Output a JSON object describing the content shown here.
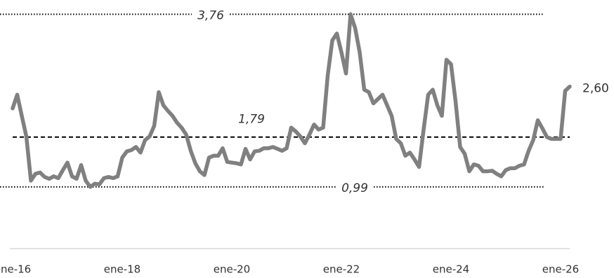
{
  "chart_data": {
    "type": "line",
    "categories": [
      "ene-16",
      null,
      null,
      null,
      null,
      null,
      null,
      null,
      null,
      null,
      null,
      null,
      null,
      null,
      null,
      null,
      null,
      null,
      null,
      null,
      null,
      null,
      null,
      null,
      "ene-18",
      null,
      null,
      null,
      null,
      null,
      null,
      null,
      null,
      null,
      null,
      null,
      null,
      null,
      null,
      null,
      null,
      null,
      null,
      null,
      null,
      null,
      null,
      null,
      "ene-20",
      null,
      null,
      null,
      null,
      null,
      null,
      null,
      null,
      null,
      null,
      null,
      null,
      null,
      null,
      null,
      null,
      null,
      null,
      null,
      null,
      null,
      null,
      null,
      "ene-22",
      null,
      null,
      null,
      null,
      null,
      null,
      null,
      null,
      null,
      null,
      null,
      null,
      null,
      null,
      null,
      null,
      null,
      null,
      null,
      null,
      null,
      null,
      null,
      "ene-24",
      null,
      null,
      null,
      null,
      null,
      null,
      null,
      null,
      null,
      null,
      null,
      null,
      null,
      null,
      null,
      null,
      null,
      null,
      null,
      null,
      null,
      null,
      null,
      "ene-26",
      null,
      null
    ],
    "values": [
      2.25,
      2.47,
      2.13,
      1.8,
      1.09,
      1.2,
      1.22,
      1.15,
      1.12,
      1.16,
      1.13,
      1.26,
      1.38,
      1.16,
      1.12,
      1.34,
      1.09,
      0.99,
      1.04,
      1.03,
      1.13,
      1.15,
      1.13,
      1.16,
      1.46,
      1.56,
      1.58,
      1.63,
      1.54,
      1.74,
      1.8,
      1.97,
      2.51,
      2.3,
      2.21,
      2.13,
      2.02,
      1.94,
      1.83,
      1.57,
      1.37,
      1.24,
      1.18,
      1.46,
      1.49,
      1.49,
      1.61,
      1.39,
      1.38,
      1.37,
      1.35,
      1.6,
      1.43,
      1.56,
      1.57,
      1.61,
      1.61,
      1.63,
      1.6,
      1.57,
      1.61,
      1.94,
      1.88,
      1.8,
      1.69,
      1.83,
      1.99,
      1.91,
      1.94,
      2.78,
      3.34,
      3.45,
      3.15,
      2.81,
      3.76,
      3.54,
      3.15,
      2.55,
      2.51,
      2.33,
      2.4,
      2.47,
      2.3,
      2.13,
      1.76,
      1.69,
      1.49,
      1.54,
      1.43,
      1.31,
      1.91,
      2.47,
      2.55,
      2.3,
      2.13,
      3.03,
      2.96,
      2.36,
      1.63,
      1.52,
      1.24,
      1.35,
      1.33,
      1.24,
      1.24,
      1.25,
      1.2,
      1.16,
      1.26,
      1.29,
      1.29,
      1.33,
      1.35,
      1.57,
      1.74,
      2.06,
      1.93,
      1.79,
      1.76,
      1.76,
      1.76,
      2.53,
      2.6
    ],
    "end_label": "2,60",
    "color": "#808080",
    "ylim": [
      0,
      4
    ],
    "reference_lines": [
      {
        "value": 3.76,
        "label": "3,76",
        "style": "dotted"
      },
      {
        "value": 1.79,
        "label": "1,79",
        "style": "dashed"
      },
      {
        "value": 0.99,
        "label": "0,99",
        "style": "dotted"
      }
    ]
  }
}
